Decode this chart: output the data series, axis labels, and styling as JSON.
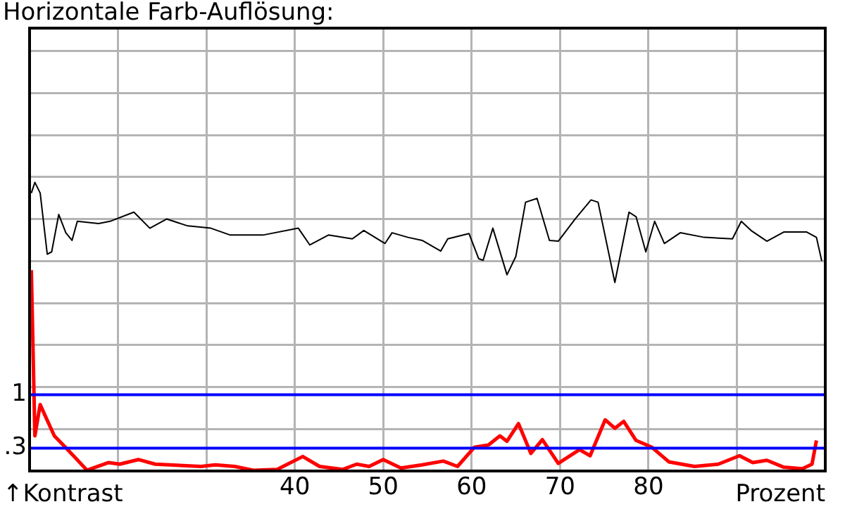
{
  "chart_data": {
    "type": "line",
    "title": "Horizontale Farb-Auflösung:",
    "xlabel": "Prozent",
    "annotations": [
      "↑Kontrast"
    ],
    "xlim": [
      10,
      100
    ],
    "xticks": [
      {
        "value": 10,
        "label": null
      },
      {
        "value": 20,
        "label": null
      },
      {
        "value": 30,
        "label": null
      },
      40,
      50,
      60,
      70,
      80,
      {
        "value": 90,
        "label": null
      },
      {
        "value": 100,
        "label": null
      }
    ],
    "ylim": [
      0,
      5.8
    ],
    "yticks": [
      {
        "value": 0.55,
        "label": null
      },
      {
        "value": 1.1,
        "label": null
      },
      {
        "value": 1.65,
        "label": null
      },
      {
        "value": 2.2,
        "label": null
      },
      {
        "value": 2.75,
        "label": null
      },
      {
        "value": 3.3,
        "label": null
      },
      {
        "value": 3.85,
        "label": null
      },
      {
        "value": 4.4,
        "label": null
      },
      {
        "value": 4.95,
        "label": null
      },
      {
        "value": 5.5,
        "label": null
      }
    ],
    "grid": true,
    "legend": false,
    "marker": "none",
    "line_style": "solid",
    "ref_lines": [
      {
        "axis": "y",
        "value": 1,
        "label": "1",
        "color": "#0000ff"
      },
      {
        "axis": "y",
        "value": 0.3,
        "label": ".3",
        "color": "#0000ff"
      }
    ],
    "series": [
      {
        "color": "#000000",
        "x": [
          10.2,
          10.6,
          11.2,
          12.0,
          12.5,
          13.3,
          14.1,
          14.8,
          15.4,
          17.8,
          19.1,
          21.8,
          23.6,
          25.5,
          27.9,
          30.5,
          32.7,
          36.4,
          40.4,
          41.7,
          43.8,
          46.5,
          47.8,
          50.2,
          51.0,
          52.8,
          54.4,
          56.5,
          57.3,
          59.7,
          60.8,
          61.3,
          62.4,
          64.0,
          65.0,
          66.1,
          67.4,
          68.8,
          69.8,
          71.7,
          73.5,
          74.3,
          76.2,
          77.8,
          78.6,
          79.7,
          80.7,
          81.8,
          83.6,
          86.3,
          89.5,
          90.5,
          91.6,
          93.4,
          95.3,
          97.9,
          99.0,
          99.6
        ],
        "values": [
          3.64,
          3.78,
          3.64,
          2.84,
          2.87,
          3.36,
          3.12,
          3.02,
          3.27,
          3.24,
          3.27,
          3.39,
          3.18,
          3.3,
          3.21,
          3.18,
          3.09,
          3.09,
          3.18,
          2.96,
          3.09,
          3.04,
          3.15,
          2.98,
          3.12,
          3.06,
          3.02,
          2.88,
          3.04,
          3.11,
          2.78,
          2.76,
          3.18,
          2.57,
          2.81,
          3.52,
          3.57,
          3.02,
          3.01,
          3.3,
          3.55,
          3.52,
          2.47,
          3.39,
          3.33,
          2.87,
          3.27,
          2.98,
          3.12,
          3.06,
          3.04,
          3.27,
          3.15,
          3.01,
          3.13,
          3.13,
          3.06,
          2.75
        ]
      },
      {
        "color": "#ff0000",
        "x": [
          10.2,
          10.6,
          11.2,
          11.7,
          12.8,
          14.3,
          16.5,
          18.9,
          20.2,
          22.3,
          24.2,
          29.4,
          31.0,
          33.2,
          35.3,
          38.0,
          40.9,
          42.8,
          45.4,
          47.0,
          48.4,
          50.0,
          52.0,
          54.4,
          56.8,
          58.4,
          60.3,
          61.9,
          63.2,
          64.0,
          65.3,
          66.7,
          68.0,
          69.8,
          72.2,
          73.4,
          75.1,
          76.2,
          77.2,
          78.6,
          80.4,
          82.3,
          85.2,
          87.9,
          90.3,
          91.8,
          93.4,
          95.3,
          97.4,
          98.5,
          99.0
        ],
        "values": [
          2.63,
          0.46,
          0.87,
          0.74,
          0.46,
          0.28,
          0.01,
          0.11,
          0.09,
          0.15,
          0.09,
          0.06,
          0.08,
          0.06,
          0.01,
          0.02,
          0.19,
          0.06,
          0.02,
          0.09,
          0.06,
          0.15,
          0.04,
          0.08,
          0.13,
          0.06,
          0.31,
          0.34,
          0.46,
          0.39,
          0.62,
          0.23,
          0.41,
          0.1,
          0.28,
          0.2,
          0.67,
          0.56,
          0.65,
          0.4,
          0.31,
          0.12,
          0.06,
          0.09,
          0.2,
          0.11,
          0.14,
          0.05,
          0.03,
          0.09,
          0.4
        ]
      }
    ]
  }
}
